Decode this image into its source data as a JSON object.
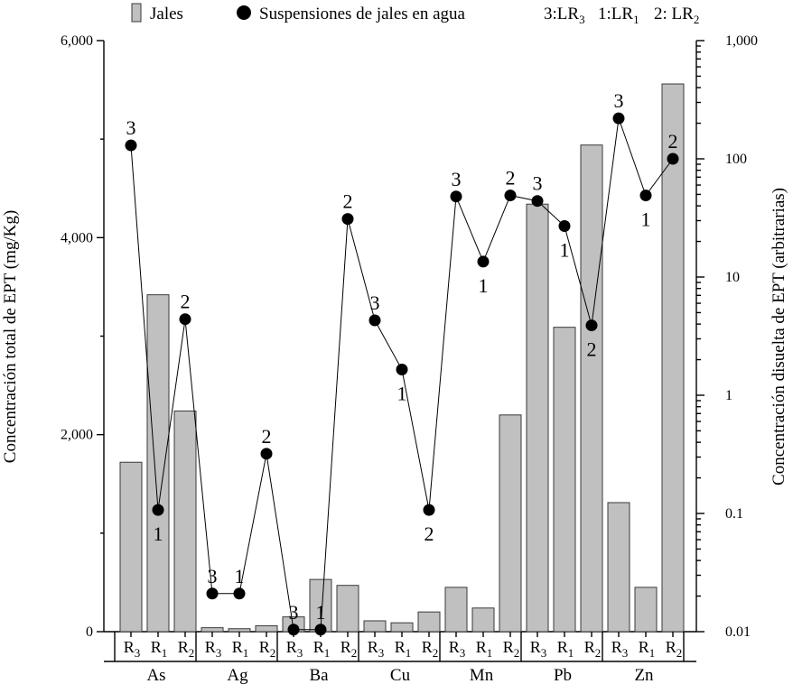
{
  "chart_data": {
    "type": "bar+line",
    "legend": {
      "bars_label": "Jales",
      "dots_label": "Suspensiones de jales en agua",
      "key": [
        {
          "num": "3",
          "name": "LR",
          "sub": "3"
        },
        {
          "num": "1",
          "name": "LR",
          "sub": "1"
        },
        {
          "num": "2",
          "name": "LR",
          "sub": "2"
        }
      ]
    },
    "y_left": {
      "label": "Concentración total de EPT (mg/Kg)",
      "ticks": [
        "0",
        "2,000",
        "4,000",
        "6,000"
      ],
      "range": [
        0,
        6000
      ]
    },
    "y_right": {
      "label": "Concentración disuelta de EPT (arbitrarias)",
      "scale": "log",
      "ticks": [
        "0.01",
        "0.1",
        "1",
        "10",
        "100",
        "1,000"
      ],
      "range": [
        0.01,
        1000
      ]
    },
    "sample_order": [
      "R3",
      "R1",
      "R2"
    ],
    "groups": [
      {
        "element": "As",
        "bars": [
          1720,
          3420,
          2240
        ],
        "dots": [
          130,
          0.107,
          4.4
        ],
        "labels": [
          "3",
          "1",
          "2"
        ]
      },
      {
        "element": "Ag",
        "bars": [
          40,
          30,
          60
        ],
        "dots": [
          0.021,
          0.021,
          0.32
        ],
        "labels": [
          "3",
          "1",
          "2"
        ]
      },
      {
        "element": "Ba",
        "bars": [
          150,
          530,
          470
        ],
        "dots": [
          0.0104,
          0.0104,
          31
        ],
        "labels": [
          "3",
          "1",
          "2"
        ]
      },
      {
        "element": "Cu",
        "bars": [
          110,
          90,
          200
        ],
        "dots": [
          4.3,
          1.65,
          0.107
        ],
        "labels": [
          "3",
          "1",
          "2"
        ]
      },
      {
        "element": "Mn",
        "bars": [
          450,
          240,
          2200
        ],
        "dots": [
          48,
          13.5,
          49
        ],
        "labels": [
          "3",
          "1",
          "2"
        ]
      },
      {
        "element": "Pb",
        "bars": [
          4340,
          3090,
          4940
        ],
        "dots": [
          44,
          27,
          3.9
        ],
        "labels": [
          "3",
          "1",
          "2"
        ]
      },
      {
        "element": "Zn",
        "bars": [
          1310,
          450,
          5560
        ],
        "dots": [
          220,
          49,
          100
        ],
        "labels": [
          "3",
          "1",
          "2"
        ]
      }
    ]
  }
}
